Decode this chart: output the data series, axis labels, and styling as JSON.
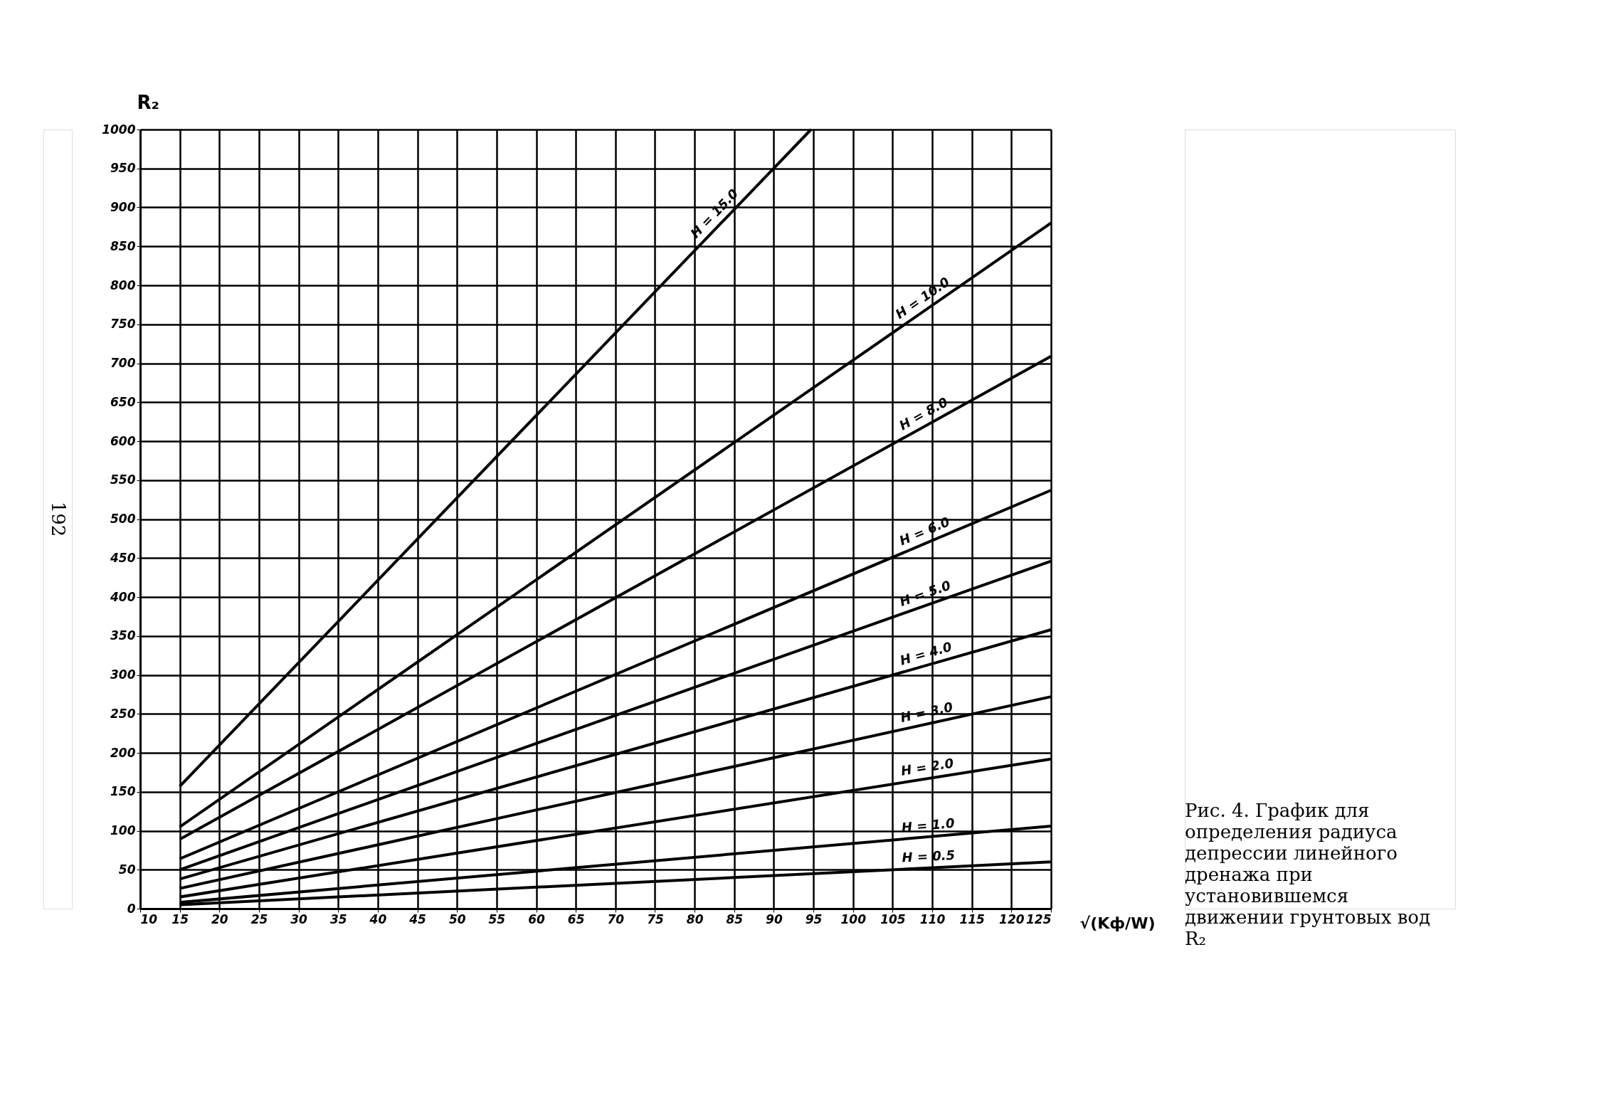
{
  "chart_data": {
    "type": "line",
    "xlabel": "√(Kф/W)",
    "ylabel": "R₂",
    "xlim": [
      10,
      125
    ],
    "xticks": [
      10,
      15,
      20,
      25,
      30,
      35,
      40,
      45,
      50,
      55,
      60,
      65,
      70,
      75,
      80,
      85,
      90,
      95,
      100,
      105,
      110,
      115,
      120,
      125
    ],
    "ylim": [
      0,
      1000
    ],
    "yticks": [
      {
        "value": 0,
        "label": "0"
      },
      50,
      100,
      150,
      200,
      250,
      300,
      350,
      400,
      450,
      500,
      550,
      600,
      650,
      700,
      750,
      800,
      850,
      900,
      950,
      1000
    ],
    "grid": true,
    "legend": false,
    "line_style": "solid",
    "marker": "none",
    "series": [
      {
        "name": "H = 15.0",
        "color": "#000000",
        "x": [
          15,
          94.7
        ],
        "values": [
          157,
          1000
        ]
      },
      {
        "name": "H = 10.0",
        "color": "#000000",
        "x": [
          15,
          125
        ],
        "values": [
          105,
          880
        ]
      },
      {
        "name": "H = 8.0",
        "color": "#000000",
        "x": [
          15,
          125
        ],
        "values": [
          89,
          709
        ]
      },
      {
        "name": "H = 6.0",
        "color": "#000000",
        "x": [
          15,
          125
        ],
        "values": [
          64,
          537
        ]
      },
      {
        "name": "H = 5.0",
        "color": "#000000",
        "x": [
          15,
          125
        ],
        "values": [
          50,
          446
        ]
      },
      {
        "name": "H = 4.0",
        "color": "#000000",
        "x": [
          15,
          125
        ],
        "values": [
          38,
          358
        ]
      },
      {
        "name": "H = 3.0",
        "color": "#000000",
        "x": [
          15,
          125
        ],
        "values": [
          26,
          272
        ]
      },
      {
        "name": "H = 2.0",
        "color": "#000000",
        "x": [
          15,
          125
        ],
        "values": [
          15,
          192
        ]
      },
      {
        "name": "H = 1.0",
        "color": "#000000",
        "x": [
          15,
          125
        ],
        "values": [
          8,
          106
        ]
      },
      {
        "name": "H = 0.5",
        "color": "#000000",
        "x": [
          15,
          125
        ],
        "values": [
          5,
          60
        ]
      }
    ],
    "annotations": [
      "Рис. 4. График для определения радиуса депрессии линейного дренажа при установившемся движении грунтовых вод R₂",
      "192"
    ]
  }
}
